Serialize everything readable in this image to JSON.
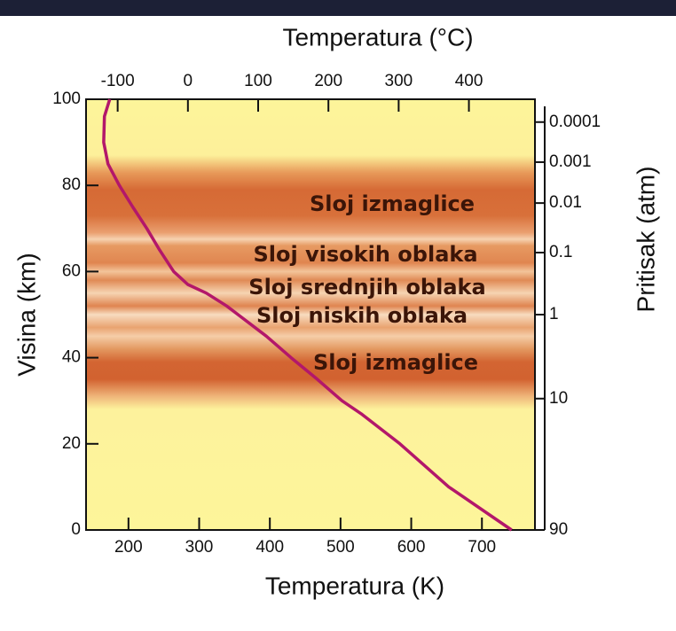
{
  "chart_data": {
    "type": "line",
    "x_title": "Temperatura (K)",
    "x2_title": "Temperatura (°C)",
    "y_title": "Visina (km)",
    "y2_title": "Pritisak (atm)",
    "xlim": [
      140,
      775
    ],
    "xticks": [
      200,
      300,
      400,
      500,
      600,
      700
    ],
    "x2lim": [
      -145,
      494
    ],
    "x2ticks": [
      -100,
      0,
      100,
      200,
      300,
      400
    ],
    "ylim": [
      0,
      100
    ],
    "yticks": [
      0,
      20,
      40,
      60,
      80,
      100
    ],
    "pressure_ticks": [
      {
        "altitude": 94.7,
        "pressure": 0.0001
      },
      {
        "altitude": 85.4,
        "pressure": 0.001
      },
      {
        "altitude": 75.9,
        "pressure": 0.01
      },
      {
        "altitude": 64.4,
        "pressure": 0.1
      },
      {
        "altitude": 50.0,
        "pressure": 1
      },
      {
        "altitude": 30.5,
        "pressure": 10
      },
      {
        "altitude": 0,
        "pressure": 90
      }
    ],
    "layers": [
      "Sloj izmaglice",
      "Sloj visokih oblaka",
      "Sloj srednjih oblaka",
      "Sloj niskih oblaka",
      "Sloj izmaglice"
    ],
    "series": [
      {
        "name": "Temperatura",
        "color": "#b3176a",
        "x": [
          742,
          653,
          584,
          529,
          502,
          467,
          430,
          395,
          355,
          339,
          310,
          284,
          264,
          244,
          226,
          206,
          187,
          171,
          165,
          166,
          173.5
        ],
        "y": [
          0,
          10,
          20,
          27,
          30,
          35,
          40,
          45,
          50,
          52,
          55,
          57,
          60,
          65,
          70,
          75,
          80,
          85,
          90,
          96,
          100
        ]
      }
    ]
  }
}
